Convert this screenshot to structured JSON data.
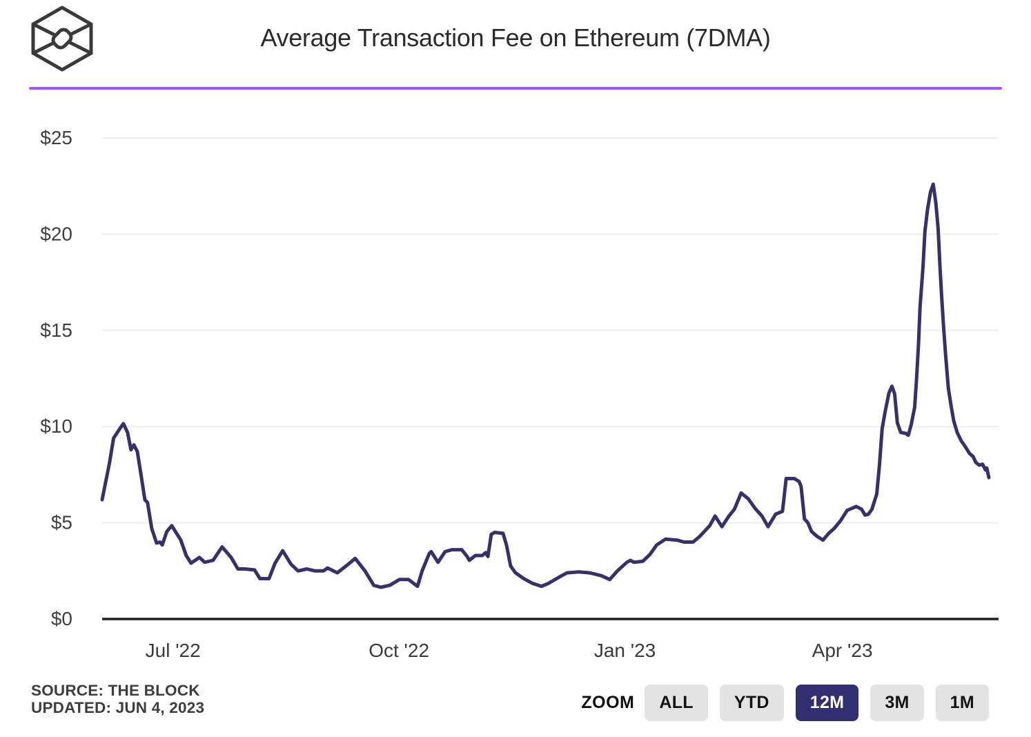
{
  "header": {
    "title": "Average Transaction Fee on Ethereum (7DMA)",
    "logo_name": "the-block-cube-logo"
  },
  "colors": {
    "divider_purple": "#a855f7",
    "line_indigo": "#37316b",
    "active_button_bg": "#332d72",
    "gridline": "#ededed",
    "axis_line": "#1f1f1f"
  },
  "footer": {
    "source_line": "SOURCE: THE BLOCK",
    "updated_line": "UPDATED: JUN 4, 2023",
    "zoom_label": "ZOOM",
    "zoom_buttons": [
      {
        "label": "ALL",
        "active": false
      },
      {
        "label": "YTD",
        "active": false
      },
      {
        "label": "12M",
        "active": true
      },
      {
        "label": "3M",
        "active": false
      },
      {
        "label": "1M",
        "active": false
      }
    ]
  },
  "chart_data": {
    "type": "line",
    "title": "Average Transaction Fee on Ethereum (7DMA)",
    "xlabel": "",
    "ylabel": "",
    "unit": "USD",
    "ylim": [
      0,
      25
    ],
    "grid": true,
    "legend": false,
    "y_ticks": [
      {
        "label": "$0",
        "value": 0
      },
      {
        "label": "$5",
        "value": 5
      },
      {
        "label": "$10",
        "value": 10
      },
      {
        "label": "$15",
        "value": 15
      },
      {
        "label": "$20",
        "value": 20
      },
      {
        "label": "$25",
        "value": 25
      }
    ],
    "x_range_days": [
      0,
      363
    ],
    "x_window": "12M ending Jun 4, 2023",
    "x_ticks": [
      {
        "label": "Jul '22",
        "day": 29
      },
      {
        "label": "Oct '22",
        "day": 121.5
      },
      {
        "label": "Jan '23",
        "day": 214
      },
      {
        "label": "Apr '23",
        "day": 303
      }
    ],
    "series": [
      {
        "name": "Average Transaction Fee on Ethereum (7DMA)",
        "points": [
          [
            0,
            6.2
          ],
          [
            1.4,
            7.1
          ],
          [
            3,
            8.1
          ],
          [
            4.7,
            9.4
          ],
          [
            7.3,
            9.9
          ],
          [
            8.7,
            10.15
          ],
          [
            10.4,
            9.7
          ],
          [
            11.8,
            8.8
          ],
          [
            13,
            9.05
          ],
          [
            14.4,
            8.7
          ],
          [
            16.1,
            7.35
          ],
          [
            17.5,
            6.2
          ],
          [
            18.6,
            6.05
          ],
          [
            20.3,
            4.7
          ],
          [
            22.3,
            3.95
          ],
          [
            23.7,
            4
          ],
          [
            24.6,
            3.85
          ],
          [
            26.5,
            4.55
          ],
          [
            28.5,
            4.85
          ],
          [
            32.2,
            4.1
          ],
          [
            34.4,
            3.3
          ],
          [
            36.4,
            2.9
          ],
          [
            39.8,
            3.2
          ],
          [
            42,
            2.95
          ],
          [
            45.4,
            3.05
          ],
          [
            49.1,
            3.75
          ],
          [
            52.8,
            3.2
          ],
          [
            55.6,
            2.6
          ],
          [
            58.4,
            2.6
          ],
          [
            62.4,
            2.55
          ],
          [
            64.6,
            2.1
          ],
          [
            68.3,
            2.1
          ],
          [
            70.8,
            2.9
          ],
          [
            73.9,
            3.55
          ],
          [
            77.3,
            2.85
          ],
          [
            80.2,
            2.5
          ],
          [
            83.8,
            2.6
          ],
          [
            87.2,
            2.5
          ],
          [
            90.6,
            2.5
          ],
          [
            92.3,
            2.65
          ],
          [
            96.3,
            2.4
          ],
          [
            100.8,
            2.85
          ],
          [
            103.6,
            3.15
          ],
          [
            107.6,
            2.5
          ],
          [
            111.2,
            1.75
          ],
          [
            114.1,
            1.65
          ],
          [
            117.7,
            1.75
          ],
          [
            121.7,
            2.05
          ],
          [
            125.4,
            2.05
          ],
          [
            129.1,
            1.7
          ],
          [
            131,
            2.5
          ],
          [
            133.9,
            3.4
          ],
          [
            134.7,
            3.5
          ],
          [
            137.5,
            2.95
          ],
          [
            140.4,
            3.5
          ],
          [
            143.2,
            3.6
          ],
          [
            147.2,
            3.6
          ],
          [
            149.4,
            3.25
          ],
          [
            150.3,
            3.05
          ],
          [
            152.8,
            3.3
          ],
          [
            155.6,
            3.3
          ],
          [
            157,
            3.45
          ],
          [
            157.9,
            3.25
          ],
          [
            159.3,
            4.4
          ],
          [
            160.7,
            4.5
          ],
          [
            164.1,
            4.45
          ],
          [
            165.5,
            3.85
          ],
          [
            167.2,
            2.75
          ],
          [
            169.2,
            2.4
          ],
          [
            172.6,
            2.1
          ],
          [
            176.2,
            1.85
          ],
          [
            179.9,
            1.7
          ],
          [
            182.7,
            1.85
          ],
          [
            186.7,
            2.15
          ],
          [
            190.3,
            2.4
          ],
          [
            195.1,
            2.45
          ],
          [
            199.6,
            2.4
          ],
          [
            204.4,
            2.25
          ],
          [
            207.8,
            2.05
          ],
          [
            210.9,
            2.5
          ],
          [
            214.8,
            2.95
          ],
          [
            216.3,
            3.05
          ],
          [
            217.7,
            2.95
          ],
          [
            221.3,
            3
          ],
          [
            224.2,
            3.35
          ],
          [
            227,
            3.85
          ],
          [
            230.6,
            4.15
          ],
          [
            235.4,
            4.1
          ],
          [
            238.2,
            4
          ],
          [
            241.9,
            4
          ],
          [
            244.7,
            4.3
          ],
          [
            248.7,
            4.85
          ],
          [
            250.9,
            5.35
          ],
          [
            253.7,
            4.8
          ],
          [
            256.6,
            5.35
          ],
          [
            258.8,
            5.7
          ],
          [
            261.6,
            6.55
          ],
          [
            264.5,
            6.25
          ],
          [
            267.3,
            5.75
          ],
          [
            270.1,
            5.35
          ],
          [
            272.6,
            4.8
          ],
          [
            275.7,
            5.45
          ],
          [
            278.5,
            5.6
          ],
          [
            280,
            7.3
          ],
          [
            283.3,
            7.3
          ],
          [
            285.3,
            7.15
          ],
          [
            286.1,
            6.9
          ],
          [
            287.5,
            5.2
          ],
          [
            288.9,
            5
          ],
          [
            290.4,
            4.55
          ],
          [
            292.6,
            4.3
          ],
          [
            295.1,
            4.1
          ],
          [
            297.4,
            4.45
          ],
          [
            299.6,
            4.7
          ],
          [
            302.2,
            5.1
          ],
          [
            305,
            5.65
          ],
          [
            308.7,
            5.85
          ],
          [
            310.9,
            5.7
          ],
          [
            312.3,
            5.4
          ],
          [
            313.7,
            5.45
          ],
          [
            315.1,
            5.7
          ],
          [
            317.1,
            6.5
          ],
          [
            318.2,
            8
          ],
          [
            319.3,
            9.9
          ],
          [
            320.7,
            10.9
          ],
          [
            322.1,
            11.75
          ],
          [
            323.3,
            12.1
          ],
          [
            324.4,
            11.7
          ],
          [
            325.5,
            10.2
          ],
          [
            326.9,
            9.7
          ],
          [
            328.9,
            9.65
          ],
          [
            330,
            9.55
          ],
          [
            331.2,
            10.1
          ],
          [
            332.6,
            11
          ],
          [
            333.4,
            12.5
          ],
          [
            334.2,
            14.3
          ],
          [
            334.8,
            16.2
          ],
          [
            336,
            18.25
          ],
          [
            336.8,
            20.15
          ],
          [
            337.9,
            21.3
          ],
          [
            339.1,
            22.2
          ],
          [
            340.2,
            22.6
          ],
          [
            341.3,
            21.6
          ],
          [
            342.2,
            20.3
          ],
          [
            343,
            18.25
          ],
          [
            343.6,
            16.9
          ],
          [
            344.4,
            15.25
          ],
          [
            345.3,
            13.7
          ],
          [
            346.4,
            12
          ],
          [
            347.5,
            11.1
          ],
          [
            348.6,
            10.3
          ],
          [
            350,
            9.7
          ],
          [
            351.7,
            9.25
          ],
          [
            353.1,
            9
          ],
          [
            355.1,
            8.6
          ],
          [
            356.5,
            8.45
          ],
          [
            357.6,
            8.15
          ],
          [
            359,
            8
          ],
          [
            360.4,
            8.05
          ],
          [
            361.6,
            7.75
          ],
          [
            362.1,
            7.85
          ],
          [
            363,
            7.35
          ]
        ]
      }
    ]
  }
}
